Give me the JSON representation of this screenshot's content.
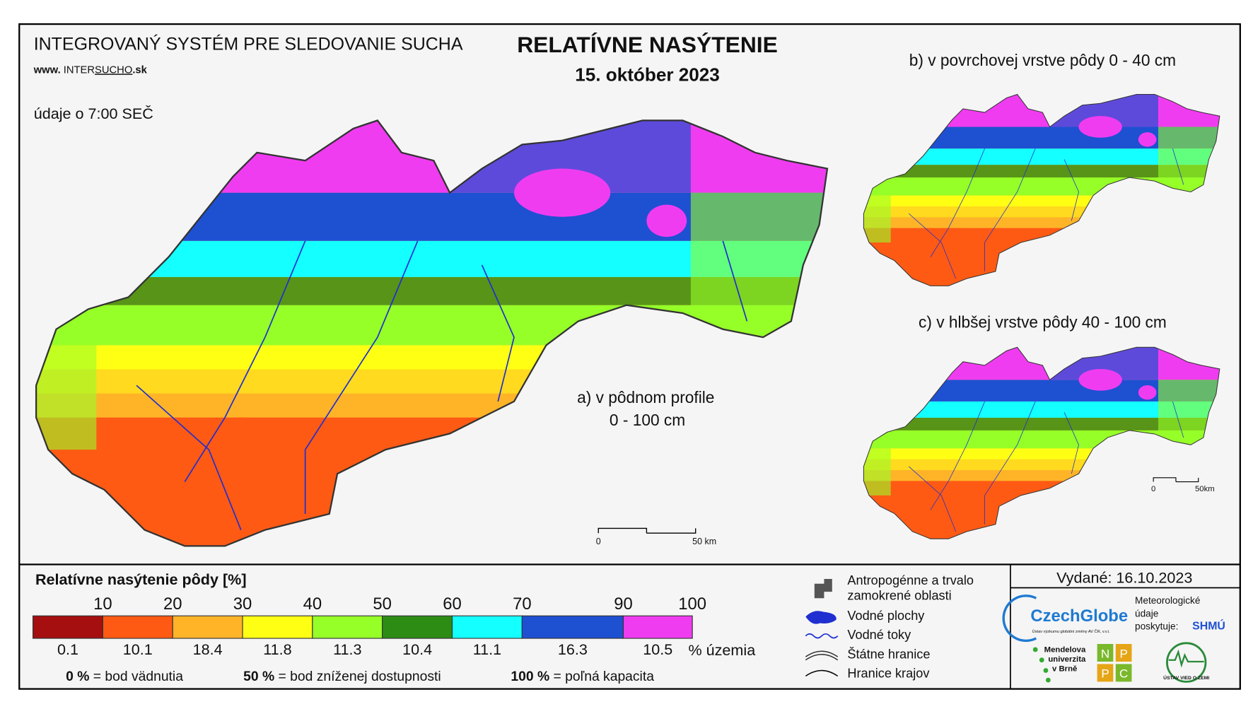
{
  "header": {
    "system_title": "INTEGROVANÝ SYSTÉM PRE SLEDOVANIE SUCHA",
    "url": [
      "www. ",
      "INTER",
      "SUCHO",
      ".sk"
    ],
    "time_note": "údaje o 7:00 SEČ",
    "title": "RELATÍVNE NASÝTENIE",
    "date": "15. október 2023"
  },
  "panels": [
    {
      "label": "a) v pôdnom profile",
      "sublabel": "0 - 100 cm"
    },
    {
      "label": "b) v povrchovej vrstve pôdy 0 - 40 cm"
    },
    {
      "label": "c) v hlbšej vrstve pôdy 40 - 100 cm"
    }
  ],
  "scale_bars": [
    {
      "start": "0",
      "end": "50 km"
    },
    {
      "start": "0",
      "end": "50km"
    }
  ],
  "legend": {
    "title": "Relatívne nasýtenie pôdy [%]",
    "class_bounds": [
      10,
      20,
      30,
      40,
      50,
      60,
      70,
      90,
      100
    ],
    "colors": [
      "#a50f0f",
      "#ff5a14",
      "#ffb428",
      "#ffff14",
      "#96ff28",
      "#2d8c14",
      "#14ffff",
      "#1e50d2",
      "#f03cf0"
    ],
    "shares": [
      0.1,
      10.1,
      18.4,
      11.8,
      11.3,
      10.4,
      11.1,
      16.3,
      10.5
    ],
    "shares_unit": "% územia",
    "notes": [
      {
        "key": "0 %",
        "text": "= bod vädnutia"
      },
      {
        "key": "50 %",
        "text": "= bod zníženej dostupnosti"
      },
      {
        "key": "100 %",
        "text": "= poľná kapacita"
      }
    ]
  },
  "map_legend": [
    [
      "Antropogénne a trvalo",
      "zamokrené oblasti"
    ],
    [
      "Vodné plochy"
    ],
    [
      "Vodné toky"
    ],
    [
      "Štátne hranice"
    ],
    [
      "Hranice krajov"
    ]
  ],
  "footer": {
    "issued": "Vydané: 16.10.2023",
    "czechglobe": "CzechGlobe",
    "czechglobe_sub": "Ústav výzkumu globální změny AV ČR, v.v.i.",
    "meteo": [
      "Meteorologické",
      "údaje",
      "poskytuje:"
    ],
    "shmu": "SHMÚ",
    "mendel": [
      "Mendelova",
      "univerzita",
      "v Brně"
    ],
    "nppc": [
      "N",
      "P",
      "P",
      "C"
    ],
    "uvz": "ÚSTAV VIED O ZEMI"
  }
}
